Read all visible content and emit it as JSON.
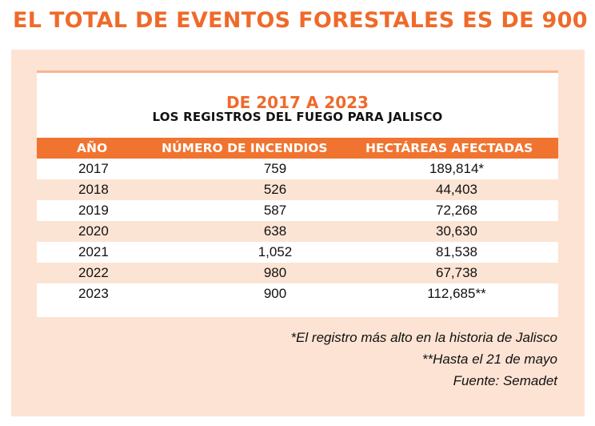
{
  "headline": "EL TOTAL DE EVENTOS FORESTALES ES DE 900",
  "subtitle": "DE 2017 A 2023",
  "subtitle2": "LOS REGISTROS DEL FUEGO PARA JALISCO",
  "table": {
    "headers": [
      "AÑO",
      "NÚMERO DE INCENDIOS",
      "HECTÁREAS AFECTADAS"
    ],
    "rows": [
      [
        "2017",
        "759",
        "189,814*"
      ],
      [
        "2018",
        "526",
        "44,403"
      ],
      [
        "2019",
        "587",
        "72,268"
      ],
      [
        "2020",
        "638",
        "30,630"
      ],
      [
        "2021",
        "1,052",
        "81,538"
      ],
      [
        "2022",
        "980",
        "67,738"
      ],
      [
        "2023",
        "900",
        "112,685**"
      ]
    ]
  },
  "notes": [
    "*El registro más alto en la historia de Jalisco",
    "**Hasta el 21 de mayo",
    "Fuente: Semadet"
  ],
  "colors": {
    "accent": "#ef6a2a",
    "header_bg": "#f07430",
    "panel_bg": "#fde3d3",
    "row_shade": "#fce4d5"
  }
}
